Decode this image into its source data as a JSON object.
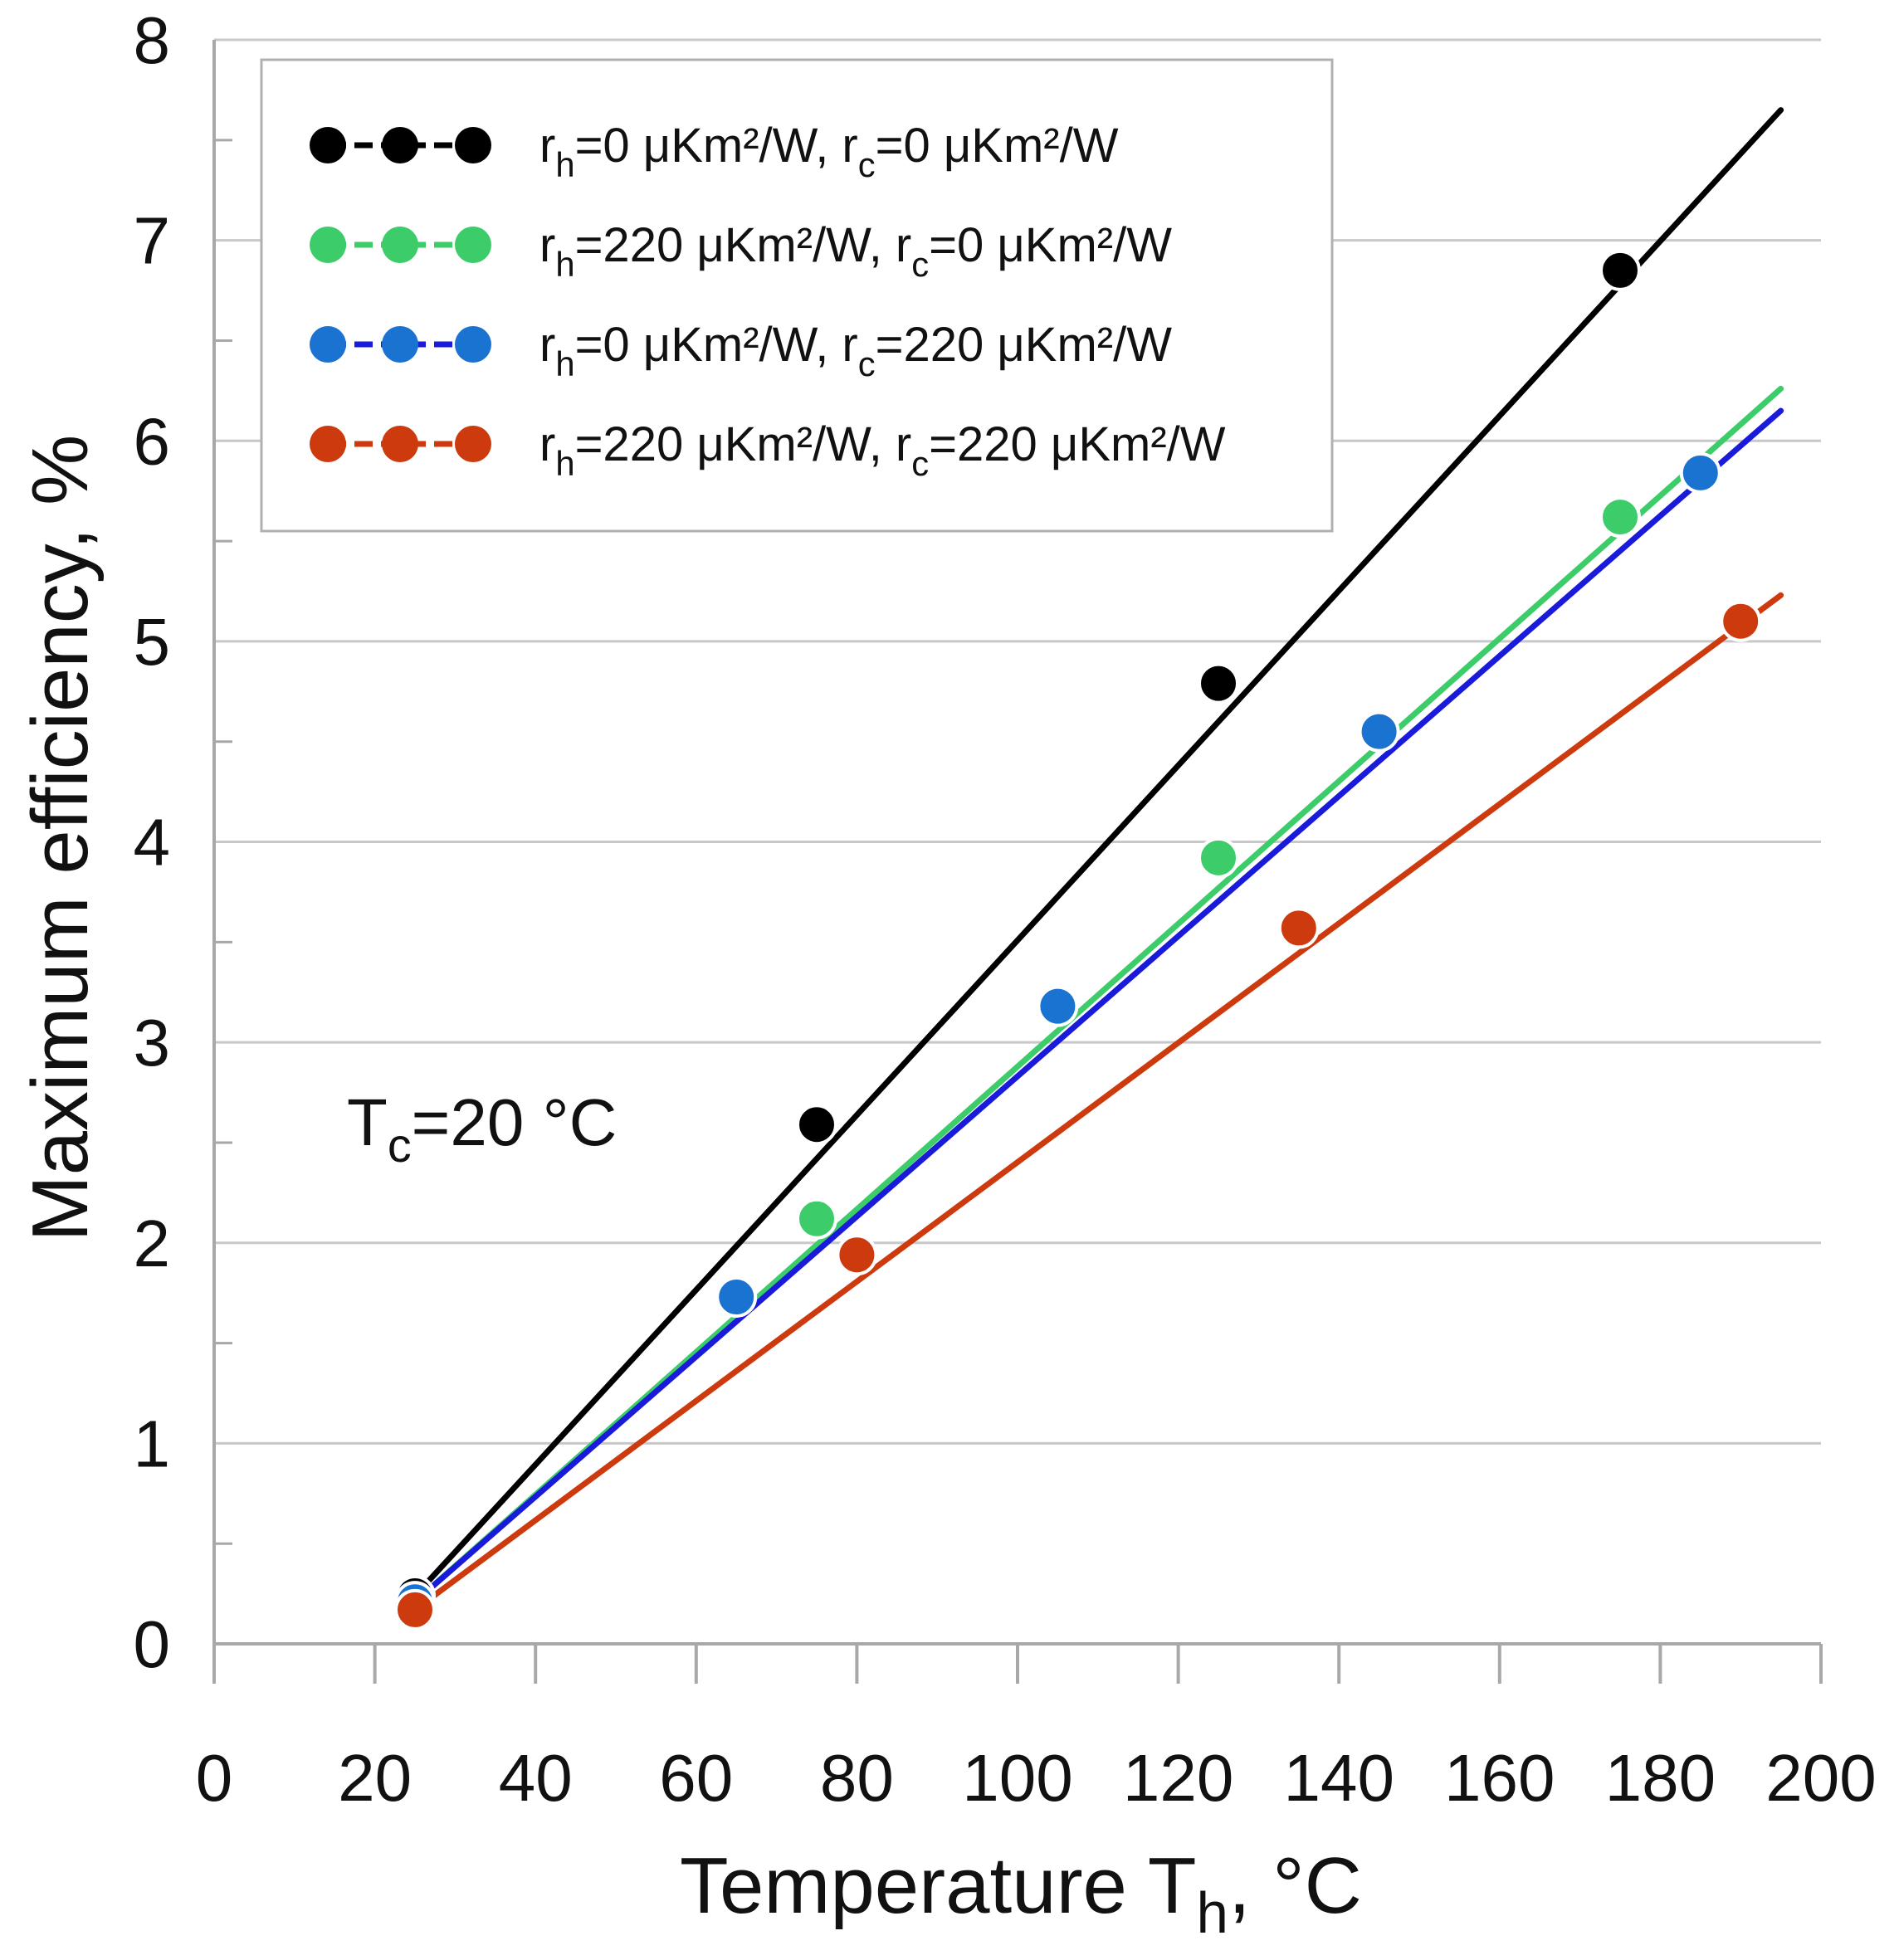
{
  "chart_data": {
    "type": "line",
    "xlabel": "Temperature T",
    "xlabel_sub": "h",
    "xlabel_suffix": ", °C",
    "ylabel": "Maximum efficiency, %",
    "xlim": [
      0,
      200
    ],
    "ylim": [
      0,
      8
    ],
    "x_ticks": [
      0,
      20,
      40,
      60,
      80,
      100,
      120,
      140,
      160,
      180,
      200
    ],
    "y_ticks": [
      0,
      1,
      2,
      3,
      4,
      5,
      6,
      7,
      8
    ],
    "grid": "horizontal",
    "legend_position": "top-left",
    "annotation": {
      "main": "T",
      "sub": "c",
      "rest": "=20 °C"
    },
    "series": [
      {
        "name": "rh=0 μKm²/W, rc=0 μKm²/W",
        "legend": {
          "rh": "=0 μKm²/W, r",
          "rc": "=0 μKm²/W"
        },
        "line_color": "#000000",
        "marker_color": "#000000",
        "line_end": [
          195,
          7.65
        ],
        "points": [
          [
            25,
            0.24
          ],
          [
            75,
            2.59
          ],
          [
            125,
            4.79
          ],
          [
            175,
            6.85
          ]
        ]
      },
      {
        "name": "rh=220 μKm²/W, rc=0 μKm²/W",
        "legend": {
          "rh": "=220 μKm²/W, r",
          "rc": "=0 μKm²/W"
        },
        "line_color": "#3dcc6a",
        "marker_color": "#3dcc6a",
        "line_end": [
          195,
          6.26
        ],
        "points": [
          [
            25,
            0.21
          ],
          [
            75,
            2.12
          ],
          [
            125,
            3.92
          ],
          [
            175,
            5.62
          ]
        ]
      },
      {
        "name": "rh=0 μKm²/W, rc=220 μKm²/W",
        "legend": {
          "rh": "=0 μKm²/W, r",
          "rc": "=220 μKm²/W"
        },
        "line_color": "#1a1adb",
        "marker_color": "#1a72d1",
        "line_end": [
          195,
          6.15
        ],
        "points": [
          [
            25,
            0.21
          ],
          [
            65,
            1.73
          ],
          [
            105,
            3.18
          ],
          [
            145,
            4.55
          ],
          [
            185,
            5.84
          ]
        ]
      },
      {
        "name": "rh=220 μKm²/W, rc=220 μKm²/W",
        "legend": {
          "rh": "=220 μKm²/W, r",
          "rc": "=220 μKm²/W"
        },
        "line_color": "#cc3a0e",
        "marker_color": "#cc3a0e",
        "line_end": [
          195,
          5.23
        ],
        "points": [
          [
            25,
            0.17
          ],
          [
            80,
            1.94
          ],
          [
            135,
            3.57
          ],
          [
            190,
            5.1
          ]
        ]
      }
    ]
  }
}
